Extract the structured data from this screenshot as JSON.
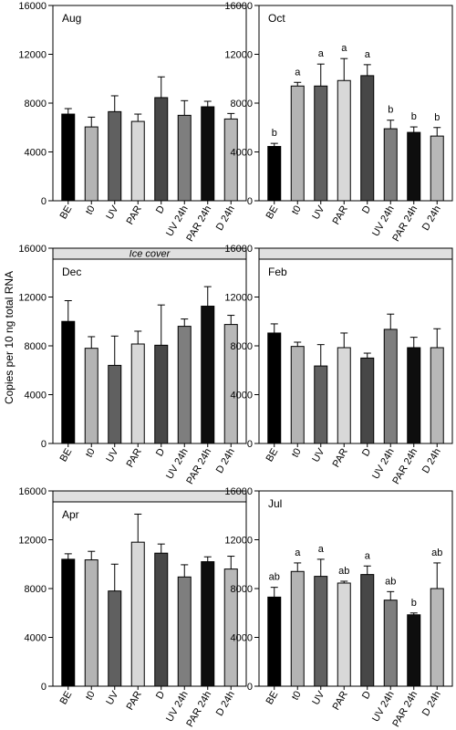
{
  "figure": {
    "ylabel": "Copies per 10 ng total RNA",
    "categories": [
      "BE",
      "t0",
      "UV",
      "PAR",
      "D",
      "UV 24h",
      "PAR 24h",
      "D 24h"
    ],
    "colors": [
      "#000000",
      "#b4b4b4",
      "#606060",
      "#d8d8d8",
      "#474747",
      "#7e7e7e",
      "#0e0e0e",
      "#b8b8b8"
    ],
    "yticks": [
      "0",
      "4000",
      "8000",
      "12000",
      "16000"
    ]
  },
  "chart_data": [
    {
      "type": "bar",
      "title": "Aug",
      "banner": null,
      "categories": [
        "BE",
        "t0",
        "UV",
        "PAR",
        "D",
        "UV 24h",
        "PAR 24h",
        "D 24h"
      ],
      "values": [
        7100,
        6050,
        7300,
        6500,
        8450,
        7000,
        7700,
        6700
      ],
      "errors": [
        450,
        800,
        1300,
        600,
        1700,
        1200,
        450,
        450
      ],
      "annotations": [],
      "ylim": [
        0,
        16000
      ],
      "yticks": [
        0,
        4000,
        8000,
        12000,
        16000
      ]
    },
    {
      "type": "bar",
      "title": "Oct",
      "banner": null,
      "categories": [
        "BE",
        "t0",
        "UV",
        "PAR",
        "D",
        "UV 24h",
        "PAR 24h",
        "D 24h"
      ],
      "values": [
        4450,
        9400,
        9400,
        9850,
        10250,
        5900,
        5600,
        5300
      ],
      "errors": [
        250,
        300,
        1800,
        1800,
        900,
        700,
        450,
        700
      ],
      "annotations": [
        "b",
        "a",
        "a",
        "a",
        "a",
        "b",
        "b",
        "b"
      ],
      "ylim": [
        0,
        16000
      ],
      "yticks": [
        0,
        4000,
        8000,
        12000,
        16000
      ]
    },
    {
      "type": "bar",
      "title": "Dec",
      "banner": "Ice cover",
      "categories": [
        "BE",
        "t0",
        "UV",
        "PAR",
        "D",
        "UV 24h",
        "PAR 24h",
        "D 24h"
      ],
      "values": [
        10000,
        7800,
        6400,
        8150,
        8050,
        9600,
        11250,
        9750
      ],
      "errors": [
        1700,
        950,
        2400,
        1050,
        3300,
        600,
        1600,
        750
      ],
      "annotations": [],
      "ylim": [
        0,
        16000
      ],
      "yticks": [
        0,
        4000,
        8000,
        12000,
        16000
      ]
    },
    {
      "type": "bar",
      "title": "Feb",
      "banner": "",
      "categories": [
        "BE",
        "t0",
        "UV",
        "PAR",
        "D",
        "UV 24h",
        "PAR 24h",
        "D 24h"
      ],
      "values": [
        9050,
        7950,
        6350,
        7850,
        7000,
        9350,
        7850,
        7850
      ],
      "errors": [
        750,
        350,
        1750,
        1200,
        400,
        1250,
        850,
        1550
      ],
      "annotations": [],
      "ylim": [
        0,
        16000
      ],
      "yticks": [
        0,
        4000,
        8000,
        12000,
        16000
      ]
    },
    {
      "type": "bar",
      "title": "Apr",
      "banner": "",
      "categories": [
        "BE",
        "t0",
        "UV",
        "PAR",
        "D",
        "UV 24h",
        "PAR 24h",
        "D 24h"
      ],
      "values": [
        10400,
        10350,
        7800,
        11800,
        10900,
        8950,
        10200,
        9600
      ],
      "errors": [
        450,
        700,
        2200,
        2300,
        750,
        1000,
        400,
        1050
      ],
      "annotations": [],
      "ylim": [
        0,
        16000
      ],
      "yticks": [
        0,
        4000,
        8000,
        12000,
        16000
      ]
    },
    {
      "type": "bar",
      "title": "Jul",
      "banner": null,
      "categories": [
        "BE",
        "t0",
        "UV",
        "PAR",
        "D",
        "UV 24h",
        "PAR 24h",
        "D 24h"
      ],
      "values": [
        7300,
        9400,
        9000,
        8450,
        9150,
        7050,
        5850,
        8000
      ],
      "errors": [
        800,
        700,
        1400,
        150,
        700,
        700,
        150,
        2100
      ],
      "annotations": [
        "ab",
        "a",
        "a",
        "ab",
        "a",
        "ab",
        "b",
        "ab"
      ],
      "ylim": [
        0,
        16000
      ],
      "yticks": [
        0,
        4000,
        8000,
        12000,
        16000
      ]
    }
  ]
}
